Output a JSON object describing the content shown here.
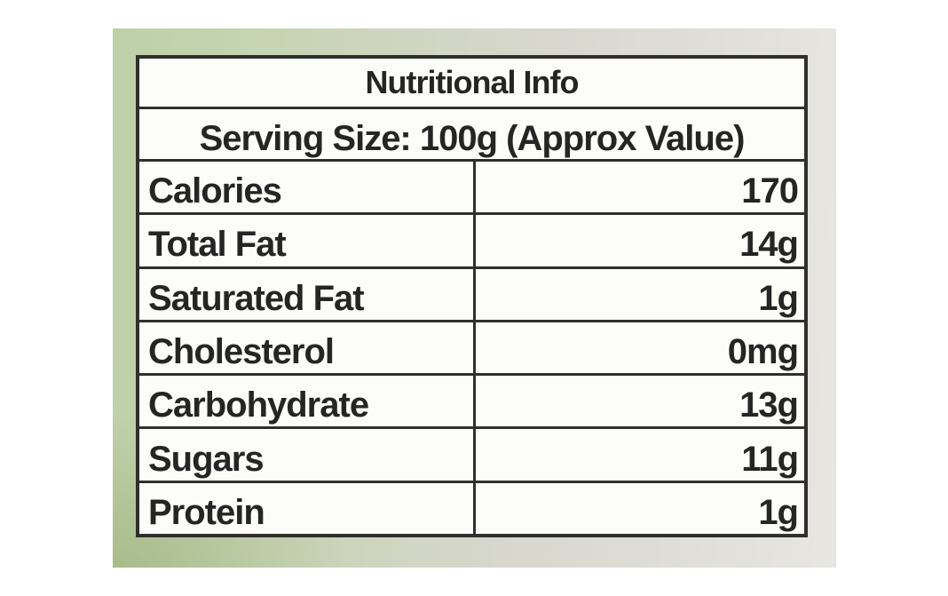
{
  "photo": {
    "description": "product nutrition label photo",
    "colors": {
      "background_green": "#c3d3ae",
      "background_gray": "#dddcd6",
      "table_border": "#2f2f2c",
      "cell_background": "#fcfcf8",
      "text": "#252525"
    }
  },
  "table": {
    "title": "Nutritional Info",
    "serving_line": "Serving Size: 100g (Approx Value)",
    "rows": [
      {
        "label": "Calories",
        "value": "170"
      },
      {
        "label": "Total Fat",
        "value": "14g"
      },
      {
        "label": "Saturated Fat",
        "value": "1g"
      },
      {
        "label": "Cholesterol",
        "value": "0mg"
      },
      {
        "label": "Carbohydrate",
        "value": "13g"
      },
      {
        "label": "Sugars",
        "value": "11g"
      },
      {
        "label": "Protein",
        "value": "1g"
      }
    ]
  }
}
